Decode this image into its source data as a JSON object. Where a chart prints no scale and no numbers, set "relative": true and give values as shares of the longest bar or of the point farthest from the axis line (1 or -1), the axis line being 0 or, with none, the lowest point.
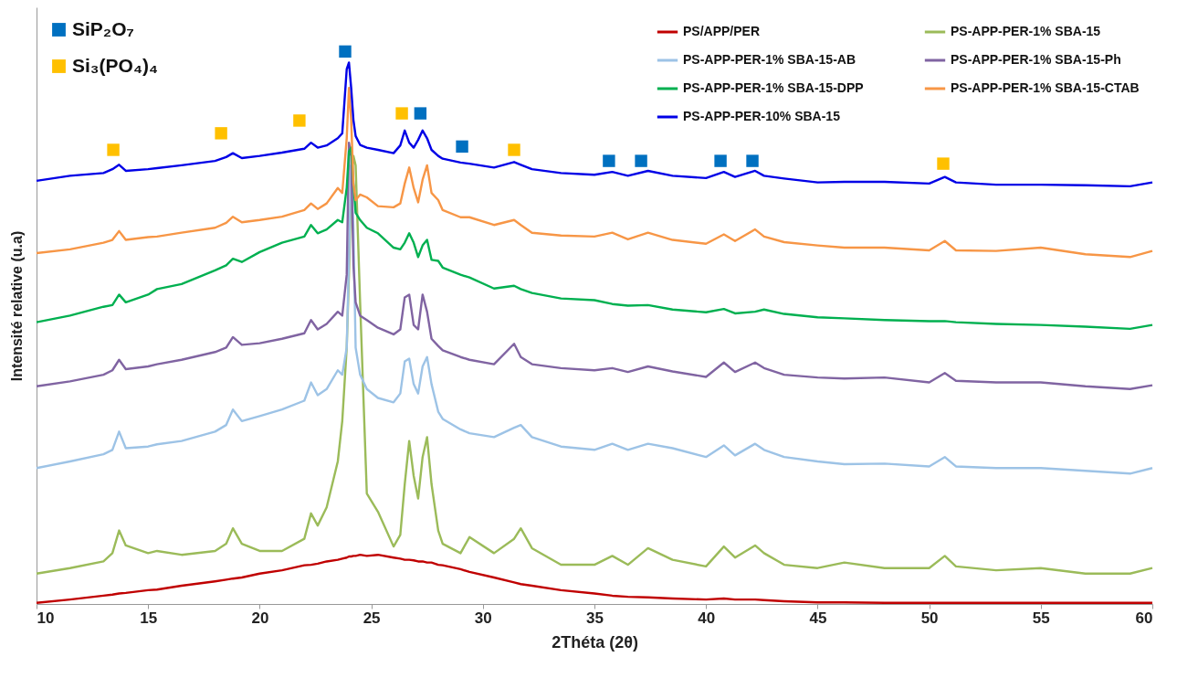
{
  "chart_data": {
    "type": "line",
    "xlabel": "2Théta (2θ)",
    "ylabel": "Intensité relative (u.a)",
    "relative": true,
    "xlim": [
      10,
      60
    ],
    "xticks": [
      10,
      15,
      20,
      25,
      30,
      35,
      40,
      45,
      50,
      55,
      60
    ],
    "grid": false,
    "legend": "top right",
    "marker": "none",
    "line_style": "solid",
    "x": [
      10,
      11.5,
      13,
      13.4,
      13.7,
      14,
      15,
      15.4,
      16.5,
      18,
      18.5,
      18.8,
      19.2,
      20,
      21,
      22,
      22.3,
      22.6,
      23,
      23.5,
      23.7,
      23.9,
      24,
      24.1,
      24.2,
      24.3,
      24.5,
      24.8,
      25.3,
      26,
      26.3,
      26.5,
      26.7,
      26.9,
      27.1,
      27.3,
      27.5,
      27.7,
      28,
      28.2,
      29,
      29.4,
      30.5,
      31.4,
      31.7,
      32.2,
      33.5,
      35,
      35.8,
      36.5,
      37.4,
      38.5,
      40,
      40.8,
      41.3,
      42.2,
      42.6,
      43.5,
      45,
      46.2,
      48,
      50,
      50.7,
      51.2,
      53,
      55,
      57,
      59,
      60
    ],
    "series": [
      {
        "name": "PS/APP/PER",
        "color": "#c00000",
        "values": [
          0.002,
          0.008,
          0.015,
          0.017,
          0.019,
          0.02,
          0.025,
          0.026,
          0.033,
          0.041,
          0.044,
          0.046,
          0.048,
          0.055,
          0.061,
          0.07,
          0.071,
          0.073,
          0.077,
          0.08,
          0.082,
          0.084,
          0.086,
          0.086,
          0.087,
          0.087,
          0.089,
          0.087,
          0.089,
          0.084,
          0.082,
          0.08,
          0.08,
          0.079,
          0.077,
          0.077,
          0.075,
          0.075,
          0.071,
          0.07,
          0.063,
          0.058,
          0.048,
          0.039,
          0.036,
          0.033,
          0.025,
          0.019,
          0.015,
          0.013,
          0.012,
          0.01,
          0.008,
          0.01,
          0.008,
          0.008,
          0.007,
          0.005,
          0.003,
          0.003,
          0.002,
          0.002,
          0.002,
          0.002,
          0.002,
          0.002,
          0.002,
          0.002,
          0.002
        ]
      },
      {
        "name": "PS-APP-PER-1% SBA-15",
        "color": "#9bbb59",
        "values": [
          0.055,
          0.065,
          0.077,
          0.092,
          0.133,
          0.106,
          0.092,
          0.096,
          0.089,
          0.096,
          0.109,
          0.137,
          0.109,
          0.096,
          0.096,
          0.118,
          0.164,
          0.142,
          0.175,
          0.258,
          0.331,
          0.464,
          0.596,
          0.761,
          0.811,
          0.794,
          0.546,
          0.2,
          0.167,
          0.104,
          0.125,
          0.217,
          0.295,
          0.232,
          0.191,
          0.266,
          0.302,
          0.217,
          0.133,
          0.109,
          0.092,
          0.121,
          0.092,
          0.118,
          0.137,
          0.101,
          0.071,
          0.071,
          0.087,
          0.071,
          0.101,
          0.08,
          0.068,
          0.104,
          0.084,
          0.106,
          0.092,
          0.071,
          0.065,
          0.075,
          0.065,
          0.065,
          0.087,
          0.068,
          0.061,
          0.065,
          0.055,
          0.055,
          0.065
        ]
      },
      {
        "name": "PS-APP-PER-1% SBA-15-AB",
        "color": "#9dc3e6",
        "values": [
          0.246,
          0.258,
          0.271,
          0.279,
          0.312,
          0.282,
          0.285,
          0.289,
          0.295,
          0.312,
          0.324,
          0.352,
          0.331,
          0.34,
          0.352,
          0.368,
          0.401,
          0.378,
          0.389,
          0.423,
          0.415,
          0.464,
          0.628,
          0.794,
          0.678,
          0.464,
          0.415,
          0.389,
          0.373,
          0.365,
          0.381,
          0.439,
          0.444,
          0.398,
          0.381,
          0.43,
          0.447,
          0.398,
          0.348,
          0.335,
          0.316,
          0.309,
          0.302,
          0.319,
          0.324,
          0.302,
          0.285,
          0.279,
          0.29,
          0.279,
          0.29,
          0.282,
          0.266,
          0.287,
          0.269,
          0.29,
          0.279,
          0.266,
          0.258,
          0.253,
          0.254,
          0.249,
          0.266,
          0.249,
          0.246,
          0.246,
          0.241,
          0.236,
          0.246
        ]
      },
      {
        "name": "PS-APP-PER-1% SBA-15-Ph",
        "color": "#8064a2",
        "values": [
          0.394,
          0.403,
          0.415,
          0.423,
          0.442,
          0.425,
          0.43,
          0.434,
          0.442,
          0.456,
          0.464,
          0.483,
          0.469,
          0.472,
          0.48,
          0.49,
          0.514,
          0.497,
          0.507,
          0.529,
          0.522,
          0.596,
          0.835,
          0.811,
          0.613,
          0.546,
          0.522,
          0.514,
          0.5,
          0.488,
          0.497,
          0.555,
          0.56,
          0.505,
          0.497,
          0.56,
          0.529,
          0.48,
          0.467,
          0.459,
          0.447,
          0.442,
          0.434,
          0.471,
          0.447,
          0.434,
          0.427,
          0.423,
          0.427,
          0.42,
          0.43,
          0.421,
          0.411,
          0.437,
          0.42,
          0.437,
          0.427,
          0.415,
          0.41,
          0.408,
          0.41,
          0.401,
          0.418,
          0.404,
          0.401,
          0.401,
          0.394,
          0.389,
          0.396
        ]
      },
      {
        "name": "PS-APP-PER-1% SBA-15-DPP",
        "color": "#00b050",
        "values": [
          0.51,
          0.522,
          0.538,
          0.541,
          0.56,
          0.546,
          0.56,
          0.57,
          0.579,
          0.604,
          0.613,
          0.625,
          0.619,
          0.637,
          0.654,
          0.665,
          0.686,
          0.671,
          0.678,
          0.695,
          0.691,
          0.753,
          0.819,
          0.826,
          0.761,
          0.708,
          0.695,
          0.681,
          0.671,
          0.645,
          0.642,
          0.654,
          0.671,
          0.654,
          0.628,
          0.649,
          0.659,
          0.623,
          0.621,
          0.609,
          0.596,
          0.591,
          0.571,
          0.576,
          0.57,
          0.563,
          0.553,
          0.55,
          0.543,
          0.54,
          0.541,
          0.533,
          0.528,
          0.534,
          0.526,
          0.529,
          0.533,
          0.525,
          0.519,
          0.517,
          0.514,
          0.512,
          0.512,
          0.51,
          0.507,
          0.505,
          0.502,
          0.498,
          0.505
        ]
      },
      {
        "name": "PS-APP-PER-1% SBA-15-CTAB",
        "color": "#f79646",
        "values": [
          0.635,
          0.642,
          0.654,
          0.659,
          0.675,
          0.659,
          0.664,
          0.665,
          0.672,
          0.681,
          0.69,
          0.701,
          0.691,
          0.695,
          0.701,
          0.713,
          0.725,
          0.715,
          0.725,
          0.753,
          0.744,
          0.843,
          0.934,
          0.876,
          0.761,
          0.731,
          0.741,
          0.736,
          0.72,
          0.718,
          0.725,
          0.761,
          0.79,
          0.753,
          0.727,
          0.768,
          0.794,
          0.744,
          0.731,
          0.713,
          0.7,
          0.7,
          0.686,
          0.695,
          0.686,
          0.672,
          0.667,
          0.665,
          0.672,
          0.66,
          0.672,
          0.659,
          0.652,
          0.669,
          0.657,
          0.678,
          0.665,
          0.655,
          0.649,
          0.645,
          0.645,
          0.64,
          0.657,
          0.64,
          0.639,
          0.645,
          0.633,
          0.628,
          0.639
        ]
      },
      {
        "name": "PS-APP-PER-10% SBA-15",
        "color": "#0000e6",
        "values": [
          0.766,
          0.775,
          0.78,
          0.787,
          0.795,
          0.784,
          0.787,
          0.789,
          0.794,
          0.802,
          0.809,
          0.816,
          0.807,
          0.811,
          0.817,
          0.824,
          0.835,
          0.826,
          0.83,
          0.843,
          0.852,
          0.968,
          0.98,
          0.934,
          0.876,
          0.847,
          0.831,
          0.826,
          0.822,
          0.816,
          0.83,
          0.857,
          0.835,
          0.826,
          0.84,
          0.857,
          0.843,
          0.822,
          0.811,
          0.806,
          0.799,
          0.797,
          0.79,
          0.8,
          0.795,
          0.787,
          0.78,
          0.777,
          0.782,
          0.775,
          0.784,
          0.775,
          0.771,
          0.782,
          0.773,
          0.784,
          0.775,
          0.77,
          0.763,
          0.764,
          0.764,
          0.761,
          0.773,
          0.763,
          0.759,
          0.759,
          0.758,
          0.756,
          0.763
        ]
      },
      {
        "name": "SiP₂O₇",
        "type": "scatter",
        "marker": "square",
        "color": "#0070c0",
        "x": [
          23.83,
          27.2,
          29.07,
          35.65,
          37.09,
          40.65,
          42.08
        ],
        "values": [
          1,
          0.888,
          0.828,
          0.802,
          0.802,
          0.802,
          0.802
        ]
      },
      {
        "name": "Si₃(PO₄)₄",
        "type": "scatter",
        "marker": "square",
        "color": "#ffc000",
        "x": [
          13.44,
          18.27,
          21.78,
          26.37,
          31.4,
          50.63
        ],
        "values": [
          0.822,
          0.852,
          0.875,
          0.888,
          0.822,
          0.797
        ]
      }
    ]
  }
}
